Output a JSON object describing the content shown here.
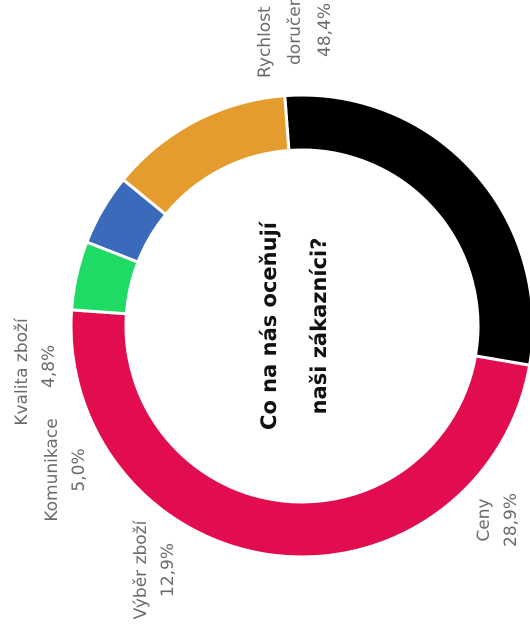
{
  "chart_data": {
    "type": "pie",
    "title_lines": [
      "Co na nás oceňují",
      "naši zákazníci?"
    ],
    "slices": [
      {
        "label_lines": [
          "Rychlost",
          "doručení"
        ],
        "value": 48.4,
        "value_text": "48,4%",
        "color": "#e10d4e"
      },
      {
        "label_lines": [
          "Ceny"
        ],
        "value": 28.9,
        "value_text": "28,9%",
        "color": "#000000"
      },
      {
        "label_lines": [
          "Výběr zboží"
        ],
        "value": 12.9,
        "value_text": "12,9%",
        "color": "#e59c2f"
      },
      {
        "label_lines": [
          "Komunikace"
        ],
        "value": 5.0,
        "value_text": "5,0%",
        "color": "#3b6aba"
      },
      {
        "label_lines": [
          "Kvalita zboží"
        ],
        "value": 4.8,
        "value_text": "4,8%",
        "color": "#1fda64"
      }
    ]
  }
}
